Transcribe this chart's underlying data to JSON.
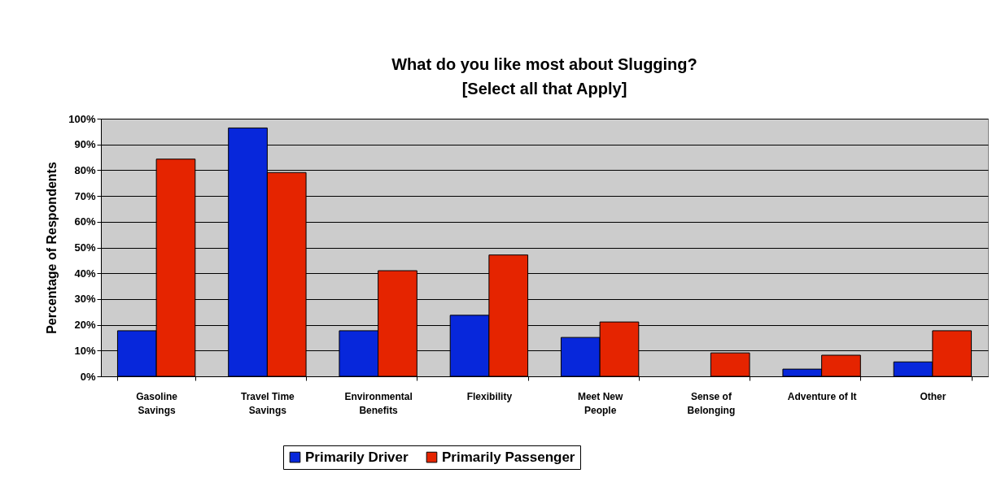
{
  "chart_data": {
    "type": "bar",
    "title": "What do you like most about Slugging?\n[Select all that Apply]",
    "ylabel": "Percentage of Respondents",
    "categories": [
      "Gasoline\nSavings",
      "Travel Time\nSavings",
      "Environmental\nBenefits",
      "Flexibility",
      "Meet New\nPeople",
      "Sense of\nBelonging",
      "Adventure of It",
      "Other"
    ],
    "series": [
      {
        "name": "Primarily Driver",
        "color": "#0727db",
        "values": [
          17.7,
          96.4,
          17.7,
          23.7,
          15.1,
          0,
          2.8,
          5.6
        ]
      },
      {
        "name": "Primarily Passenger",
        "color": "#e52400",
        "values": [
          84.3,
          79.1,
          41.0,
          47.1,
          21.1,
          9.1,
          8.2,
          17.7
        ]
      }
    ],
    "ylim": [
      0,
      100
    ],
    "yticks": [
      {
        "value": 0,
        "label": "0%"
      },
      {
        "value": 10,
        "label": "10%"
      },
      {
        "value": 20,
        "label": "20%"
      },
      {
        "value": 30,
        "label": "30%"
      },
      {
        "value": 40,
        "label": "40%"
      },
      {
        "value": 50,
        "label": "50%"
      },
      {
        "value": 60,
        "label": "60%"
      },
      {
        "value": 70,
        "label": "70%"
      },
      {
        "value": 80,
        "label": "80%"
      },
      {
        "value": 90,
        "label": "90%"
      },
      {
        "value": 100,
        "label": "100%"
      }
    ],
    "grid": "y",
    "legend": "bottom"
  }
}
